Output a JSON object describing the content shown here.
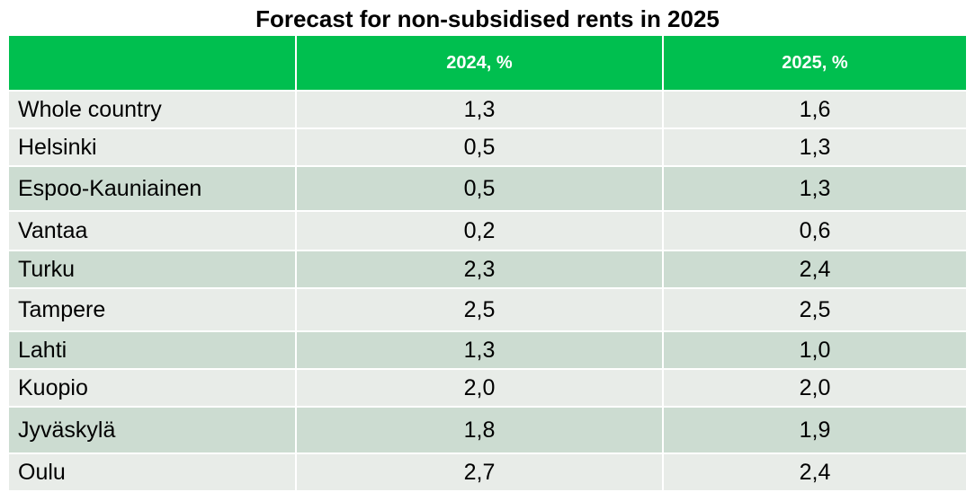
{
  "title": "Forecast for non-subsidised rents in 2025",
  "colors": {
    "header_bg": "#00bf4f",
    "row_light": "#e8ece8",
    "row_dark": "#ccdcd1",
    "header_text": "#ffffff"
  },
  "table": {
    "columns": [
      "",
      "2024, %",
      "2025, %"
    ],
    "rows": [
      {
        "region": "Whole country",
        "y2024": "1,3",
        "y2025": "1,6",
        "shade": "light"
      },
      {
        "region": "Helsinki",
        "y2024": "0,5",
        "y2025": "1,3",
        "shade": "light"
      },
      {
        "region": "Espoo-Kauniainen",
        "y2024": "0,5",
        "y2025": "1,3",
        "shade": "dark"
      },
      {
        "region": "Vantaa",
        "y2024": "0,2",
        "y2025": "0,6",
        "shade": "light"
      },
      {
        "region": "Turku",
        "y2024": "2,3",
        "y2025": "2,4",
        "shade": "dark"
      },
      {
        "region": "Tampere",
        "y2024": "2,5",
        "y2025": "2,5",
        "shade": "light"
      },
      {
        "region": "Lahti",
        "y2024": "1,3",
        "y2025": "1,0",
        "shade": "dark"
      },
      {
        "region": "Kuopio",
        "y2024": "2,0",
        "y2025": "2,0",
        "shade": "light"
      },
      {
        "region": "Jyväskylä",
        "y2024": "1,8",
        "y2025": "1,9",
        "shade": "dark"
      },
      {
        "region": "Oulu",
        "y2024": "2,7",
        "y2025": "2,4",
        "shade": "light"
      }
    ]
  },
  "chart_data": {
    "type": "table",
    "title": "Forecast for non-subsidised rents in 2025",
    "columns": [
      "",
      "2024, %",
      "2025, %"
    ],
    "categories": [
      "Whole country",
      "Helsinki",
      "Espoo-Kauniainen",
      "Vantaa",
      "Turku",
      "Tampere",
      "Lahti",
      "Kuopio",
      "Jyväskylä",
      "Oulu"
    ],
    "series": [
      {
        "name": "2024, %",
        "values": [
          1.3,
          0.5,
          0.5,
          0.2,
          2.3,
          2.5,
          1.3,
          2.0,
          1.8,
          2.7
        ]
      },
      {
        "name": "2025, %",
        "values": [
          1.6,
          1.3,
          1.3,
          0.6,
          2.4,
          2.5,
          1.0,
          2.0,
          1.9,
          2.4
        ]
      }
    ]
  }
}
